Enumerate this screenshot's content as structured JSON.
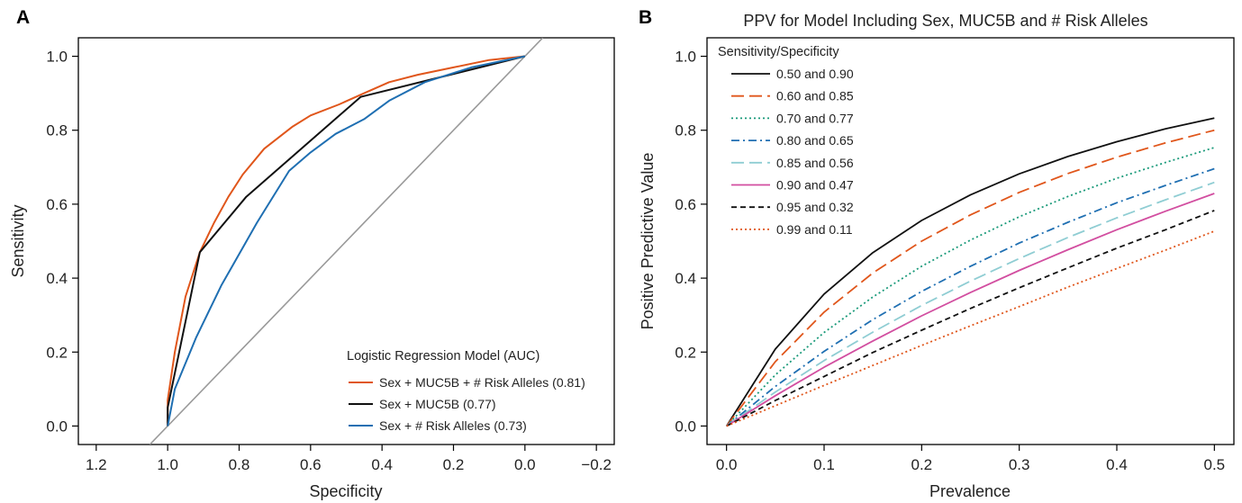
{
  "chart_data": [
    {
      "panel": "A",
      "type": "line",
      "title": "",
      "xlabel": "Specificity",
      "ylabel": "Sensitivity",
      "xlim": [
        1.25,
        -0.25
      ],
      "ylim": [
        -0.05,
        1.05
      ],
      "x_reversed": true,
      "xticks": [
        1.2,
        1.0,
        0.8,
        0.6,
        0.4,
        0.2,
        0.0,
        -0.2
      ],
      "xtick_labels": [
        "1.2",
        "1.0",
        "0.8",
        "0.6",
        "0.4",
        "0.2",
        "0.0",
        "−0.2"
      ],
      "yticks": [
        0.0,
        0.2,
        0.4,
        0.6,
        0.8,
        1.0
      ],
      "ytick_labels": [
        "0.0",
        "0.2",
        "0.4",
        "0.6",
        "0.8",
        "1.0"
      ],
      "grid": false,
      "legend": {
        "title": "Logistic Regression Model (AUC)",
        "position": "bottom-right",
        "entries": [
          "Sex + MUC5B + # Risk Alleles (0.81)",
          "Sex + MUC5B (0.77)",
          "Sex + # Risk Alleles (0.73)"
        ]
      },
      "reference_line": {
        "x": [
          1.05,
          -0.05
        ],
        "y": [
          -0.05,
          1.05
        ],
        "color": "#999999"
      },
      "series": [
        {
          "name": "Sex + MUC5B + # Risk Alleles (0.81)",
          "color": "#e0561b",
          "dash": "solid",
          "x": [
            1.0,
            1.0,
            0.98,
            0.95,
            0.91,
            0.87,
            0.83,
            0.79,
            0.73,
            0.65,
            0.6,
            0.52,
            0.45,
            0.38,
            0.3,
            0.2,
            0.1,
            0.0
          ],
          "y": [
            0.0,
            0.07,
            0.2,
            0.35,
            0.47,
            0.55,
            0.62,
            0.68,
            0.75,
            0.81,
            0.84,
            0.87,
            0.9,
            0.93,
            0.95,
            0.97,
            0.99,
            1.0
          ]
        },
        {
          "name": "Sex + MUC5B (0.77)",
          "color": "#111111",
          "dash": "solid",
          "x": [
            1.0,
            1.0,
            0.91,
            0.78,
            0.46,
            0.0
          ],
          "y": [
            0.0,
            0.05,
            0.47,
            0.62,
            0.89,
            1.0
          ]
        },
        {
          "name": "Sex + # Risk Alleles (0.73)",
          "color": "#1f6fb2",
          "dash": "solid",
          "x": [
            1.0,
            0.98,
            0.92,
            0.85,
            0.75,
            0.66,
            0.6,
            0.53,
            0.45,
            0.38,
            0.28,
            0.15,
            0.0
          ],
          "y": [
            0.0,
            0.1,
            0.24,
            0.38,
            0.55,
            0.69,
            0.74,
            0.79,
            0.83,
            0.88,
            0.93,
            0.97,
            1.0
          ]
        }
      ]
    },
    {
      "panel": "B",
      "type": "line",
      "title": "PPV for Model Including Sex, MUC5B and # Risk Alleles",
      "xlabel": "Prevalence",
      "ylabel": "Positive Predictive Value",
      "xlim": [
        -0.02,
        0.52
      ],
      "ylim": [
        -0.05,
        1.05
      ],
      "xticks": [
        0.0,
        0.1,
        0.2,
        0.3,
        0.4,
        0.5
      ],
      "xtick_labels": [
        "0.0",
        "0.1",
        "0.2",
        "0.3",
        "0.4",
        "0.5"
      ],
      "yticks": [
        0.0,
        0.2,
        0.4,
        0.6,
        0.8,
        1.0
      ],
      "ytick_labels": [
        "0.0",
        "0.2",
        "0.4",
        "0.6",
        "0.8",
        "1.0"
      ],
      "grid": false,
      "legend": {
        "title": "Sensitivity/Specificity",
        "position": "top-left",
        "entries": [
          "0.50 and 0.90",
          "0.60 and 0.85",
          "0.70 and 0.77",
          "0.80 and 0.65",
          "0.85 and 0.56",
          "0.90 and 0.47",
          "0.95 and 0.32",
          "0.99 and 0.11"
        ]
      },
      "x": [
        0.0,
        0.05,
        0.1,
        0.15,
        0.2,
        0.25,
        0.3,
        0.35,
        0.4,
        0.45,
        0.5
      ],
      "series": [
        {
          "name": "0.50 and 0.90",
          "sensitivity": 0.5,
          "specificity": 0.9,
          "color": "#111111",
          "dash": "solid",
          "values": [
            0.0,
            0.208,
            0.357,
            0.469,
            0.556,
            0.625,
            0.682,
            0.729,
            0.769,
            0.804,
            0.833
          ]
        },
        {
          "name": "0.60 and 0.85",
          "sensitivity": 0.6,
          "specificity": 0.85,
          "color": "#e0561b",
          "dash": "longdash",
          "values": [
            0.0,
            0.174,
            0.308,
            0.414,
            0.5,
            0.571,
            0.632,
            0.683,
            0.727,
            0.766,
            0.8
          ]
        },
        {
          "name": "0.70 and 0.77",
          "sensitivity": 0.7,
          "specificity": 0.77,
          "color": "#1a9a7a",
          "dash": "dotted",
          "values": [
            0.0,
            0.138,
            0.253,
            0.349,
            0.432,
            0.503,
            0.566,
            0.621,
            0.67,
            0.713,
            0.753
          ]
        },
        {
          "name": "0.80 and 0.65",
          "sensitivity": 0.8,
          "specificity": 0.65,
          "color": "#1f6fb2",
          "dash": "dotdash",
          "values": [
            0.0,
            0.107,
            0.202,
            0.288,
            0.364,
            0.432,
            0.495,
            0.551,
            0.604,
            0.651,
            0.696
          ]
        },
        {
          "name": "0.85 and 0.56",
          "sensitivity": 0.85,
          "specificity": 0.56,
          "color": "#8fcdd3",
          "dash": "longdash",
          "values": [
            0.0,
            0.092,
            0.177,
            0.254,
            0.326,
            0.392,
            0.453,
            0.51,
            0.563,
            0.612,
            0.659
          ]
        },
        {
          "name": "0.90 and 0.47",
          "sensitivity": 0.9,
          "specificity": 0.47,
          "color": "#d24ea0",
          "dash": "solid",
          "values": [
            0.0,
            0.082,
            0.159,
            0.23,
            0.298,
            0.361,
            0.421,
            0.477,
            0.531,
            0.581,
            0.629
          ]
        },
        {
          "name": "0.95 and 0.32",
          "sensitivity": 0.95,
          "specificity": 0.32,
          "color": "#111111",
          "dash": "dashed",
          "values": [
            0.0,
            0.069,
            0.134,
            0.199,
            0.259,
            0.318,
            0.374,
            0.428,
            0.481,
            0.531,
            0.583
          ]
        },
        {
          "name": "0.99 and 0.11",
          "sensitivity": 0.99,
          "specificity": 0.11,
          "color": "#e0561b",
          "dash": "dotted",
          "values": [
            0.0,
            0.055,
            0.11,
            0.164,
            0.218,
            0.271,
            0.323,
            0.376,
            0.426,
            0.476,
            0.527
          ]
        }
      ]
    }
  ]
}
